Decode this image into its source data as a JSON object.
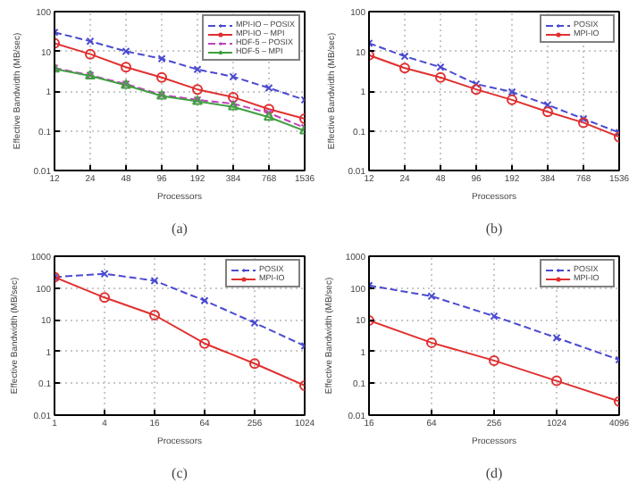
{
  "chart_data": [
    {
      "type": "line",
      "categories": [
        "12",
        "24",
        "48",
        "96",
        "192",
        "384",
        "768",
        "1536"
      ],
      "xlabel": "Processors",
      "ylabel": "Effective Bandwidth (MB/sec)",
      "log": "y",
      "ylim": [
        0.01,
        100
      ],
      "yticks": [
        0.01,
        0.1,
        1,
        10,
        100
      ],
      "grid": true,
      "legend": "top right",
      "annotations": [
        "(a)"
      ],
      "series": [
        {
          "name": "MPI-IO – POSIX",
          "color": "#4a4ad0",
          "marker": "cross",
          "line_style": "dashed",
          "values": [
            30,
            18,
            10,
            6.5,
            3.5,
            2.3,
            1.2,
            0.6
          ]
        },
        {
          "name": "MPI-IO – MPI",
          "color": "#e03030",
          "marker": "circle",
          "line_style": "solid",
          "values": [
            16,
            8.5,
            4,
            2.2,
            1.1,
            0.7,
            0.35,
            0.2
          ]
        },
        {
          "name": "HDF-5 – POSIX",
          "color": "#c040c0",
          "marker": "cross",
          "line_style": "dashed",
          "values": [
            3.8,
            2.5,
            1.5,
            0.8,
            0.6,
            0.48,
            0.28,
            0.12
          ]
        },
        {
          "name": "HDF-5 – MPI",
          "color": "#40a040",
          "marker": "triangle",
          "line_style": "solid",
          "values": [
            3.6,
            2.4,
            1.4,
            0.75,
            0.55,
            0.4,
            0.22,
            0.1
          ]
        }
      ]
    },
    {
      "type": "line",
      "categories": [
        "12",
        "24",
        "48",
        "96",
        "192",
        "384",
        "768",
        "1536"
      ],
      "xlabel": "Processors",
      "ylabel": "Effective Bandwidth (MB/sec)",
      "log": "y",
      "ylim": [
        0.01,
        100
      ],
      "yticks": [
        0.01,
        0.1,
        1,
        10,
        100
      ],
      "grid": true,
      "legend": "top right",
      "annotations": [
        "(b)"
      ],
      "series": [
        {
          "name": "POSIX",
          "color": "#4a4ad0",
          "marker": "cross",
          "line_style": "dashed",
          "values": [
            16,
            7.5,
            4,
            1.5,
            0.95,
            0.45,
            0.2,
            0.09
          ]
        },
        {
          "name": "MPI-IO",
          "color": "#e03030",
          "marker": "circle",
          "line_style": "solid",
          "values": [
            8,
            3.8,
            2.2,
            1.1,
            0.6,
            0.3,
            0.16,
            0.07
          ]
        }
      ]
    },
    {
      "type": "line",
      "categories": [
        "1",
        "4",
        "16",
        "64",
        "256",
        "1024"
      ],
      "xlabel": "Processors",
      "ylabel": "Effective Bandwidth (MB/sec)",
      "log": "y",
      "ylim": [
        0.01,
        1000
      ],
      "yticks": [
        0.01,
        0.1,
        1,
        10,
        100,
        1000
      ],
      "grid": true,
      "legend": "top right",
      "annotations": [
        "(c)"
      ],
      "series": [
        {
          "name": "POSIX",
          "color": "#4a4ad0",
          "marker": "cross",
          "line_style": "dashed",
          "values": [
            220,
            280,
            170,
            40,
            8,
            1.5
          ]
        },
        {
          "name": "MPI-IO",
          "color": "#e03030",
          "marker": "circle",
          "line_style": "solid",
          "values": [
            220,
            50,
            14,
            1.8,
            0.42,
            0.085
          ]
        }
      ]
    },
    {
      "type": "line",
      "categories": [
        "16",
        "64",
        "256",
        "1024",
        "4096"
      ],
      "xlabel": "Processors",
      "ylabel": "Effective Bandwidth (MB/sec)",
      "log": "y",
      "ylim": [
        0.01,
        1000
      ],
      "yticks": [
        0.01,
        0.1,
        1,
        10,
        100,
        1000
      ],
      "grid": true,
      "legend": "top right",
      "annotations": [
        "(d)"
      ],
      "series": [
        {
          "name": "POSIX",
          "color": "#4a4ad0",
          "marker": "cross",
          "line_style": "dashed",
          "values": [
            120,
            55,
            13,
            2.7,
            0.55
          ]
        },
        {
          "name": "MPI-IO",
          "color": "#e03030",
          "marker": "circle",
          "line_style": "solid",
          "values": [
            9.5,
            1.9,
            0.52,
            0.12,
            0.027
          ]
        }
      ]
    }
  ]
}
